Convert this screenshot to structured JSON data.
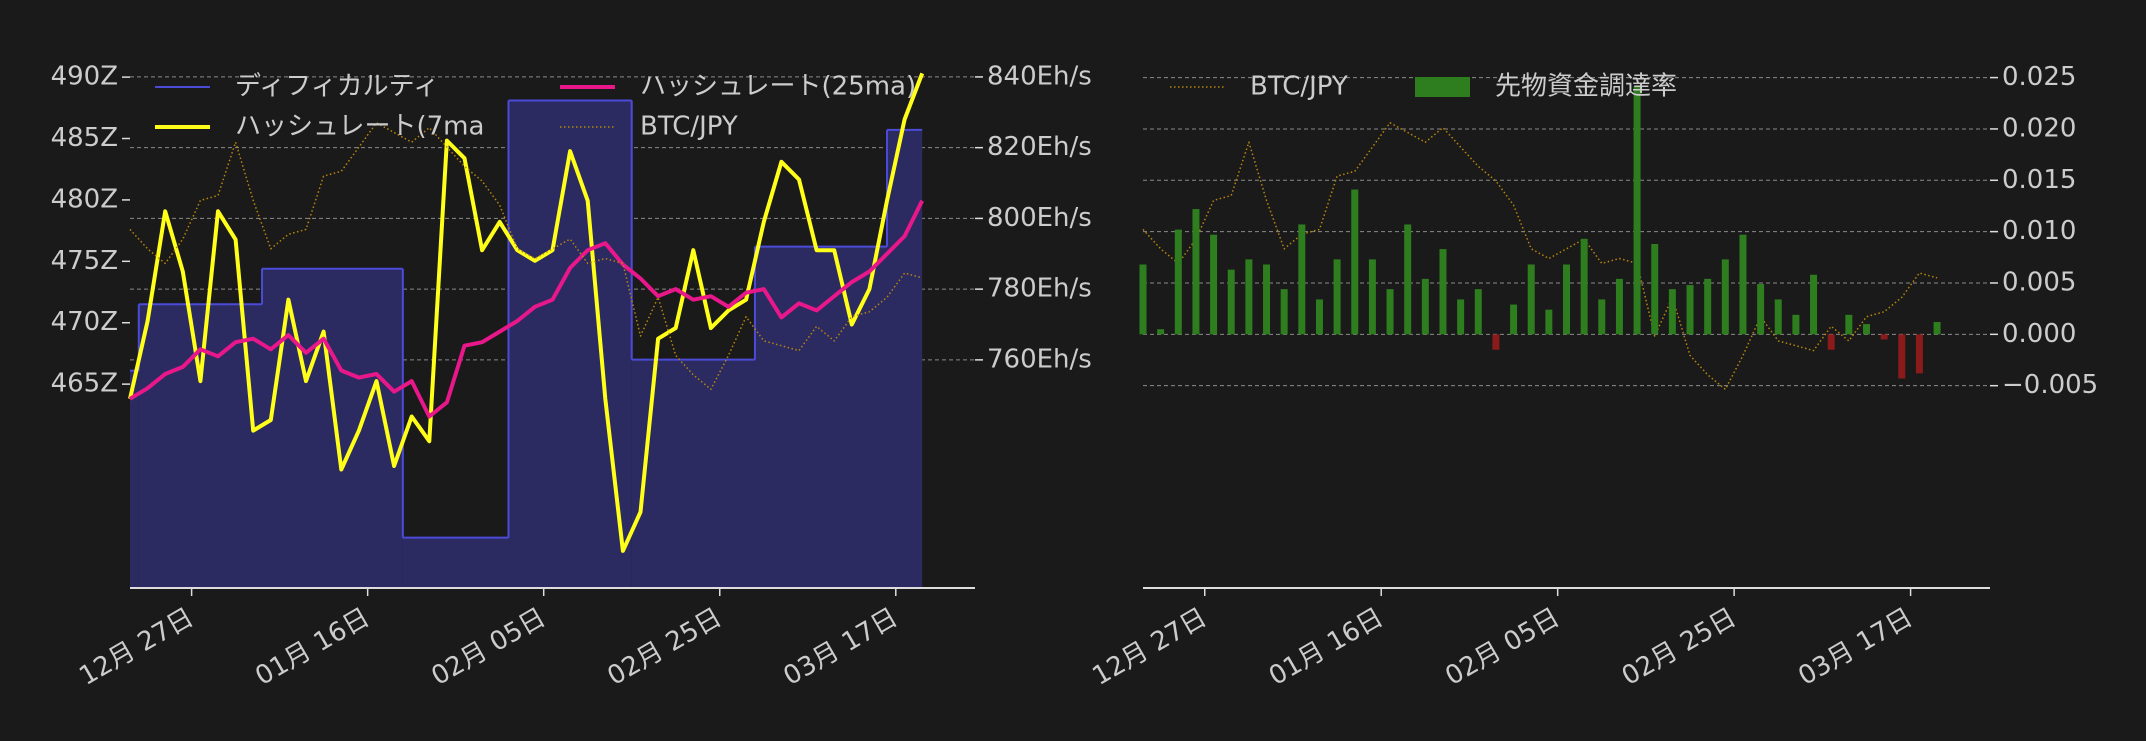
{
  "chart_data": [
    {
      "type": "line",
      "x": [
        "12-20",
        "12-22",
        "12-24",
        "12-26",
        "12-28",
        "12-30",
        "01-01",
        "01-03",
        "01-05",
        "01-07",
        "01-09",
        "01-11",
        "01-13",
        "01-15",
        "01-17",
        "01-19",
        "01-21",
        "01-23",
        "01-25",
        "01-27",
        "01-29",
        "01-31",
        "02-02",
        "02-04",
        "02-06",
        "02-08",
        "02-10",
        "02-12",
        "02-14",
        "02-16",
        "02-18",
        "02-20",
        "02-22",
        "02-24",
        "02-26",
        "02-28",
        "03-02",
        "03-04",
        "03-06",
        "03-08",
        "03-10",
        "03-12",
        "03-14",
        "03-16",
        "03-18",
        "03-20"
      ],
      "xlim": [
        "12-20",
        "03-26"
      ],
      "xticks": [
        {
          "value": "12-27",
          "label": "12月 27日"
        },
        {
          "value": "01-16",
          "label": "01月 16日"
        },
        {
          "value": "02-05",
          "label": "02月 05日"
        },
        {
          "value": "02-25",
          "label": "02月 25日"
        },
        {
          "value": "03-17",
          "label": "03月 17日"
        }
      ],
      "ylim": [
        448.4,
        491.8
      ],
      "yticks": [
        {
          "value": 465,
          "label": "465Z"
        },
        {
          "value": 470,
          "label": "470Z"
        },
        {
          "value": 475,
          "label": "475Z"
        },
        {
          "value": 480,
          "label": "480Z"
        },
        {
          "value": 485,
          "label": "485Z"
        },
        {
          "value": 490,
          "label": "490Z"
        }
      ],
      "y2lim": [
        695.5,
        846.2
      ],
      "y2ticks": [
        {
          "value": 760,
          "label": "760Eh/s"
        },
        {
          "value": 780,
          "label": "780Eh/s"
        },
        {
          "value": 800,
          "label": "800Eh/s"
        },
        {
          "value": 820,
          "label": "820Eh/s"
        },
        {
          "value": 840,
          "label": "840Eh/s"
        }
      ],
      "y3lim": [
        0,
        110
      ],
      "grid": "y2",
      "series": [
        {
          "name": "ディフィカルティ",
          "kind": "step-area",
          "axis": "y",
          "color": "#4b4bd8",
          "fill": "#2b2b62",
          "x": [
            "12-20",
            "12-21",
            "01-04",
            "01-20",
            "02-01",
            "02-15",
            "03-01",
            "03-16"
          ],
          "values": [
            466.1,
            471.5,
            474.4,
            452.5,
            488.1,
            467.0,
            476.2,
            485.7
          ]
        },
        {
          "name": "ハッシュレート(7ma",
          "kind": "line",
          "axis": "y2",
          "color": "#ffff1a",
          "values": [
            749,
            771,
            802,
            785,
            754,
            802,
            794,
            740,
            743,
            777,
            754,
            768,
            729,
            740,
            754,
            730,
            744,
            737,
            822,
            817,
            791,
            799,
            791,
            788,
            791,
            819,
            805,
            749,
            706,
            717,
            766,
            769,
            791,
            769,
            774,
            777,
            799,
            816,
            811,
            791,
            791,
            770,
            780,
            805,
            828,
            841
          ]
        },
        {
          "name": "ハッシュレート(25ma)",
          "kind": "line",
          "axis": "y2",
          "color": "#e8178a",
          "values": [
            749,
            752,
            756,
            758,
            763,
            761,
            765,
            766,
            763,
            767,
            762,
            766,
            757,
            755,
            756,
            751,
            754,
            744,
            748,
            764,
            765,
            768,
            771,
            775,
            777,
            786,
            791,
            793,
            787,
            783,
            778,
            780,
            777,
            778,
            775,
            779,
            780,
            772,
            776,
            774,
            778,
            782,
            785,
            790,
            795,
            805
          ]
        },
        {
          "name": "BTC/JPY",
          "kind": "dotted",
          "axis": "y3",
          "color": "#b8860b",
          "values": [
            74,
            70,
            67,
            72,
            80,
            81,
            92,
            80,
            70,
            73,
            74,
            85,
            86,
            91,
            96,
            94,
            92,
            95,
            91,
            87,
            84,
            79,
            70,
            68,
            70,
            72,
            67,
            68,
            67,
            52,
            60,
            48,
            44,
            41,
            48,
            56,
            51,
            50,
            49,
            54,
            51,
            56,
            57,
            60,
            65,
            64
          ]
        }
      ]
    },
    {
      "type": "bar",
      "x": [
        "12-20",
        "12-22",
        "12-24",
        "12-26",
        "12-28",
        "12-30",
        "01-01",
        "01-03",
        "01-05",
        "01-07",
        "01-09",
        "01-11",
        "01-13",
        "01-15",
        "01-17",
        "01-19",
        "01-21",
        "01-23",
        "01-25",
        "01-27",
        "01-29",
        "01-31",
        "02-02",
        "02-04",
        "02-06",
        "02-08",
        "02-10",
        "02-12",
        "02-14",
        "02-16",
        "02-18",
        "02-20",
        "02-22",
        "02-24",
        "02-26",
        "02-28",
        "03-02",
        "03-04",
        "03-06",
        "03-08",
        "03-10",
        "03-12",
        "03-14",
        "03-16",
        "03-18",
        "03-20"
      ],
      "xlim": [
        "12-20",
        "03-26"
      ],
      "xticks": [
        {
          "value": "12-27",
          "label": "12月 27日"
        },
        {
          "value": "01-16",
          "label": "01月 16日"
        },
        {
          "value": "02-05",
          "label": "02月 05日"
        },
        {
          "value": "02-25",
          "label": "02月 25日"
        },
        {
          "value": "03-17",
          "label": "03月 17日"
        }
      ],
      "ylim": [
        -0.0247,
        0.0272
      ],
      "yticks": [
        {
          "value": -0.005,
          "label": "−0.005"
        },
        {
          "value": 0,
          "label": "0.000"
        },
        {
          "value": 0.005,
          "label": "0.005"
        },
        {
          "value": 0.01,
          "label": "0.010"
        },
        {
          "value": 0.015,
          "label": "0.015"
        },
        {
          "value": 0.02,
          "label": "0.020"
        },
        {
          "value": 0.025,
          "label": "0.025"
        }
      ],
      "y3lim": [
        0,
        110
      ],
      "grid": "y",
      "series": [
        {
          "name": "BTC/JPY",
          "kind": "dotted",
          "axis": "y3",
          "color": "#b8860b",
          "values": [
            74,
            70,
            67,
            72,
            80,
            81,
            92,
            80,
            70,
            73,
            74,
            85,
            86,
            91,
            96,
            94,
            92,
            95,
            91,
            87,
            84,
            79,
            70,
            68,
            70,
            72,
            67,
            68,
            67,
            52,
            60,
            48,
            44,
            41,
            48,
            56,
            51,
            50,
            49,
            54,
            51,
            56,
            57,
            60,
            65,
            64
          ]
        },
        {
          "name": "先物資金調達率",
          "kind": "bar",
          "axis": "y",
          "color": "#2e7d1f",
          "negative_color": "#8b1a1a",
          "values": [
            0.0068,
            0.0005,
            0.0102,
            0.0122,
            0.0097,
            0.0063,
            0.0073,
            0.0068,
            0.0044,
            0.0107,
            0.0034,
            0.0073,
            0.0141,
            0.0073,
            0.0044,
            0.0107,
            0.0054,
            0.0083,
            0.0034,
            0.0044,
            -0.0015,
            0.0029,
            0.0068,
            0.0024,
            0.0068,
            0.0093,
            0.0034,
            0.0054,
            0.0241,
            0.0088,
            0.0044,
            0.0048,
            0.0054,
            0.0073,
            0.0097,
            0.0049,
            0.0034,
            0.0019,
            0.0058,
            -0.0015,
            0.0019,
            0.001,
            -0.0005,
            -0.0043,
            -0.0038,
            0.0012
          ]
        }
      ]
    }
  ]
}
